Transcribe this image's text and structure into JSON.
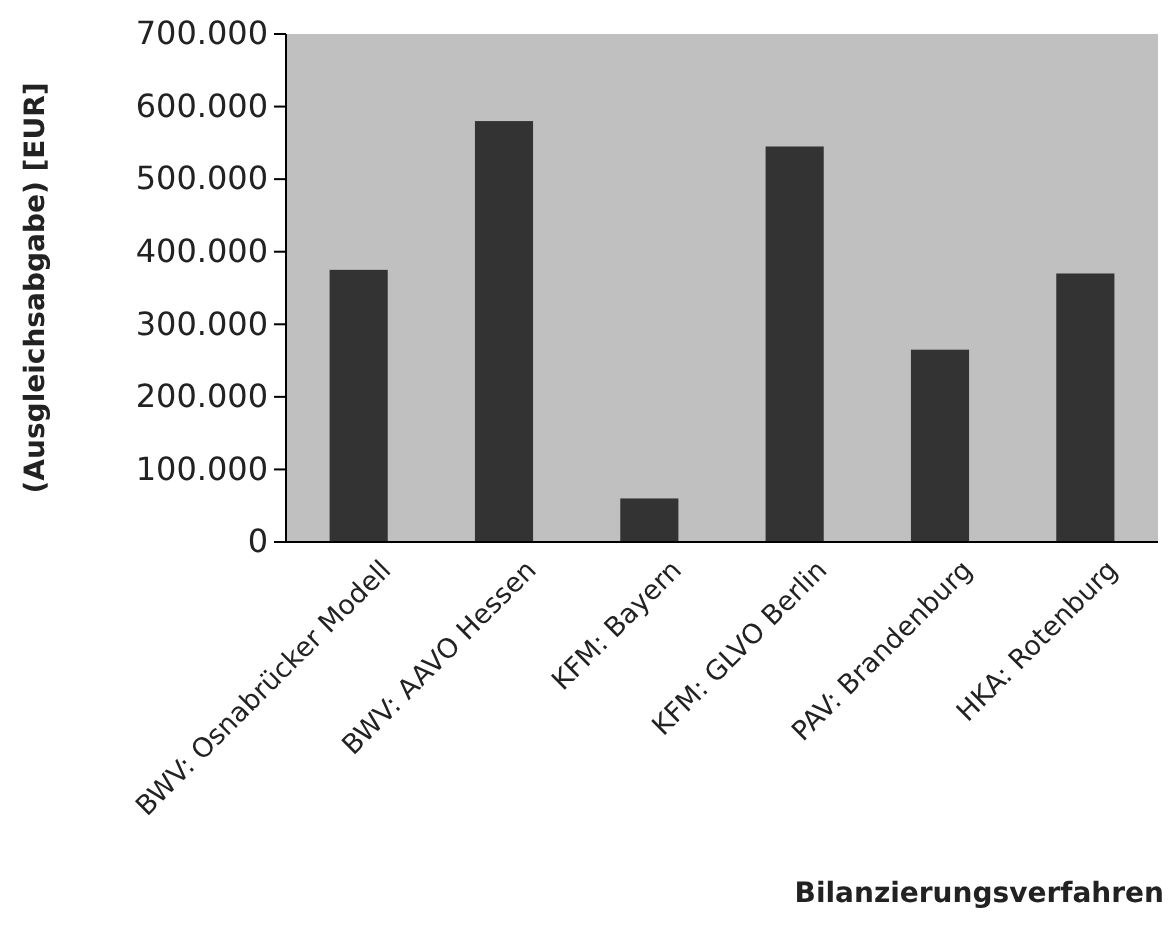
{
  "chart_data": {
    "type": "bar",
    "ylabel": "(Ausgleichsabgabe) [EUR]",
    "xlabel": "Bilanzierungsverfahren",
    "categories": [
      "BWV: Osnabrücker Modell",
      "BWV: AAVO Hessen",
      "KFM: Bayern",
      "KFM: GLVO Berlin",
      "PAV: Brandenburg",
      "HKA: Rotenburg"
    ],
    "values": [
      375000,
      580000,
      60000,
      545000,
      265000,
      370000
    ],
    "color": "#333333",
    "ylim": [
      0,
      700000
    ],
    "yticks": [
      {
        "value": 0,
        "label": "0"
      },
      {
        "value": 100000,
        "label": "100.000"
      },
      {
        "value": 200000,
        "label": "200.000"
      },
      {
        "value": 300000,
        "label": "300.000"
      },
      {
        "value": 400000,
        "label": "400.000"
      },
      {
        "value": 500000,
        "label": "500.000"
      },
      {
        "value": 600000,
        "label": "600.000"
      },
      {
        "value": 700000,
        "label": "700.000"
      }
    ],
    "grid": false
  }
}
